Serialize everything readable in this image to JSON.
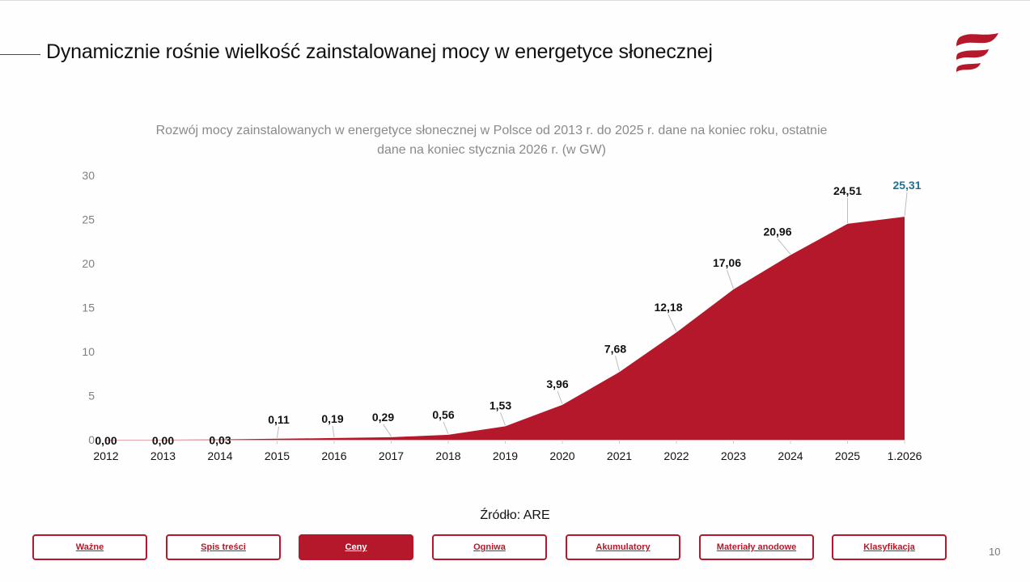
{
  "header": {
    "title": "Dynamicznie rośnie wielkość zainstalowanej mocy w energetyce słonecznej",
    "logo_icon": "flag-waves-logo-icon"
  },
  "colors": {
    "accent": "#b5182a",
    "highlight_label": "#1f7391",
    "axis_text": "#7f7f7f",
    "title_text": "#8a8a8a"
  },
  "chart_data": {
    "type": "area",
    "title": "Rozwój mocy zainstalowanych w energetyce słonecznej w Polsce od 2013 r. do 2025 r. dane na koniec roku, ostatnie dane na koniec stycznia 2026 r. (w GW)",
    "title_line1": "Rozwój mocy zainstalowanych w energetyce słonecznej w Polsce od 2013 r. do 2025 r. dane na koniec roku, ostatnie",
    "title_line2": "dane na koniec stycznia 2026 r. (w GW)",
    "categories": [
      "2012",
      "2013",
      "2014",
      "2015",
      "2016",
      "2017",
      "2018",
      "2019",
      "2020",
      "2021",
      "2022",
      "2023",
      "2024",
      "2025",
      "1.2026"
    ],
    "values": [
      0.0,
      0.0,
      0.03,
      0.11,
      0.19,
      0.29,
      0.56,
      1.53,
      3.96,
      7.68,
      12.18,
      17.06,
      20.96,
      24.51,
      25.31
    ],
    "data_labels": [
      "0,00",
      "0,00",
      "0,03",
      "0,11",
      "0,19",
      "0,29",
      "0,56",
      "1,53",
      "3,96",
      "7,68",
      "12,18",
      "17,06",
      "20,96",
      "24,51",
      "25,31"
    ],
    "highlighted_index": 14,
    "xlabel": "",
    "ylabel": "",
    "ylim": [
      0,
      30
    ],
    "yticks": [
      0,
      5,
      10,
      15,
      20,
      25,
      30
    ],
    "ytick_labels": [
      "0",
      "5",
      "10",
      "15",
      "20",
      "25",
      "30"
    ],
    "grid": false,
    "legend": "none"
  },
  "footer": {
    "source": "Źródło: ARE",
    "page_number": "10",
    "nav": [
      {
        "label": "Ważne",
        "active": false
      },
      {
        "label": "Spis treści",
        "active": false
      },
      {
        "label": "Ceny",
        "active": true
      },
      {
        "label": "Ogniwa",
        "active": false
      },
      {
        "label": "Akumulatory",
        "active": false
      },
      {
        "label": "Materiały anodowe",
        "active": false
      },
      {
        "label": "Klasyfikacja",
        "active": false
      }
    ]
  }
}
